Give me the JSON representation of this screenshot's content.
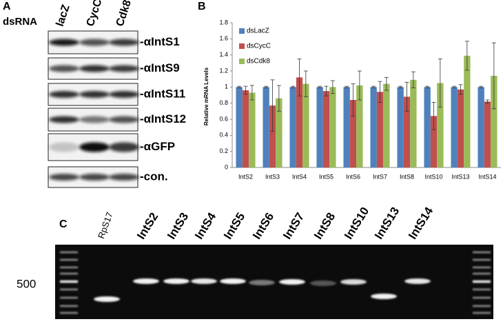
{
  "panel_a": {
    "label": "A",
    "rnai_label": "dsRNA",
    "lanes": [
      "lacZ",
      "CycC",
      "Cdk8"
    ],
    "blots": [
      "-αIntS1",
      "-αIntS9",
      "-αIntS11",
      "-αIntS12",
      "-αGFP",
      "-con."
    ]
  },
  "panel_b": {
    "label": "B"
  },
  "chart_data": {
    "type": "bar",
    "y_label": "Relative mRNA Levels",
    "categories": [
      "IntS2",
      "IntS3",
      "IntS4",
      "IntS5",
      "IntS6",
      "IntS7",
      "IntS8",
      "IntS10",
      "IntS13",
      "IntS14"
    ],
    "series": [
      {
        "name": "dsLacZ",
        "color": "#4f81bd",
        "values": [
          1,
          1,
          1,
          1,
          1,
          1,
          1,
          1,
          1,
          1
        ],
        "errors": [
          0.01,
          0.01,
          0.01,
          0.01,
          0.01,
          0.01,
          0.01,
          0.01,
          0.01,
          0.01
        ]
      },
      {
        "name": "dsCycC",
        "color": "#c0504d",
        "values": [
          0.96,
          0.77,
          1.12,
          0.95,
          0.84,
          0.94,
          0.88,
          0.64,
          0.97,
          0.82
        ],
        "errors": [
          0.05,
          0.32,
          0.23,
          0.06,
          0.2,
          0.13,
          0.18,
          0.17,
          0.06,
          0.02
        ]
      },
      {
        "name": "dsCdk8",
        "color": "#9bbb59",
        "values": [
          0.93,
          0.86,
          1.04,
          1.0,
          1.02,
          1.04,
          1.09,
          1.05,
          1.39,
          1.14
        ],
        "errors": [
          0.09,
          0.16,
          0.16,
          0.08,
          0.18,
          0.08,
          0.1,
          0.3,
          0.18,
          0.41
        ]
      }
    ],
    "ylim": [
      0,
      1.8
    ],
    "yticks": [
      0,
      0.2,
      0.4,
      0.6,
      0.8,
      1,
      1.2,
      1.4,
      1.6,
      1.8
    ],
    "grid": false,
    "legend": "top-left"
  },
  "panel_c": {
    "label": "C",
    "size_marker": "500",
    "lanes": [
      "RpS17",
      "IntS2",
      "IntS3",
      "IntS4",
      "IntS5",
      "IntS6",
      "IntS7",
      "IntS8",
      "IntS10",
      "IntS13",
      "IntS14"
    ]
  }
}
